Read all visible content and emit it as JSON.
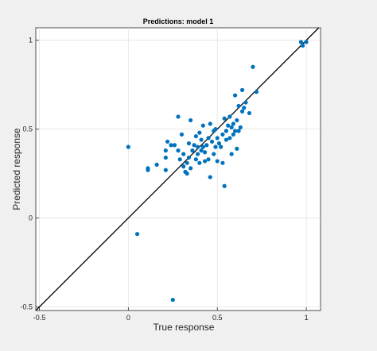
{
  "chart_data": {
    "type": "scatter",
    "title": "Predictions: model 1",
    "xlabel": "True response",
    "ylabel": "Predicted response",
    "xlim": [
      -0.52,
      1.08
    ],
    "ylim": [
      -0.52,
      1.07
    ],
    "grid": true,
    "x_ticks": [
      -0.5,
      0,
      0.5,
      1
    ],
    "y_ticks": [
      -0.5,
      0,
      0.5,
      1
    ],
    "x_tick_labels": [
      "-0.5",
      "0",
      "0.5",
      "1"
    ],
    "y_tick_labels": [
      "-0.5",
      "0",
      "0.5",
      "1"
    ],
    "reference_line": {
      "from": [
        -0.52,
        -0.52
      ],
      "to": [
        1.07,
        1.07
      ]
    },
    "series": [
      {
        "marker_color": "#0072BD",
        "line_color": "#000000",
        "points": [
          [
            0.0,
            0.4
          ],
          [
            0.05,
            -0.09
          ],
          [
            0.25,
            -0.46
          ],
          [
            0.11,
            0.27
          ],
          [
            0.11,
            0.28
          ],
          [
            0.16,
            0.3
          ],
          [
            0.21,
            0.34
          ],
          [
            0.22,
            0.43
          ],
          [
            0.21,
            0.38
          ],
          [
            0.21,
            0.27
          ],
          [
            0.24,
            0.41
          ],
          [
            0.26,
            0.41
          ],
          [
            0.28,
            0.38
          ],
          [
            0.28,
            0.57
          ],
          [
            0.29,
            0.33
          ],
          [
            0.3,
            0.47
          ],
          [
            0.31,
            0.36
          ],
          [
            0.31,
            0.29
          ],
          [
            0.32,
            0.26
          ],
          [
            0.33,
            0.25
          ],
          [
            0.33,
            0.31
          ],
          [
            0.34,
            0.34
          ],
          [
            0.34,
            0.42
          ],
          [
            0.35,
            0.28
          ],
          [
            0.35,
            0.55
          ],
          [
            0.36,
            0.38
          ],
          [
            0.37,
            0.41
          ],
          [
            0.38,
            0.46
          ],
          [
            0.38,
            0.33
          ],
          [
            0.39,
            0.4
          ],
          [
            0.39,
            0.36
          ],
          [
            0.4,
            0.48
          ],
          [
            0.4,
            0.31
          ],
          [
            0.41,
            0.44
          ],
          [
            0.41,
            0.38
          ],
          [
            0.42,
            0.4
          ],
          [
            0.42,
            0.52
          ],
          [
            0.43,
            0.37
          ],
          [
            0.43,
            0.32
          ],
          [
            0.44,
            0.41
          ],
          [
            0.45,
            0.45
          ],
          [
            0.45,
            0.33
          ],
          [
            0.46,
            0.53
          ],
          [
            0.46,
            0.23
          ],
          [
            0.47,
            0.43
          ],
          [
            0.48,
            0.49
          ],
          [
            0.48,
            0.36
          ],
          [
            0.49,
            0.5
          ],
          [
            0.49,
            0.4
          ],
          [
            0.5,
            0.32
          ],
          [
            0.5,
            0.45
          ],
          [
            0.51,
            0.42
          ],
          [
            0.52,
            0.4
          ],
          [
            0.53,
            0.47
          ],
          [
            0.53,
            0.31
          ],
          [
            0.54,
            0.56
          ],
          [
            0.54,
            0.18
          ],
          [
            0.55,
            0.49
          ],
          [
            0.55,
            0.44
          ],
          [
            0.56,
            0.52
          ],
          [
            0.57,
            0.45
          ],
          [
            0.57,
            0.57
          ],
          [
            0.58,
            0.51
          ],
          [
            0.58,
            0.36
          ],
          [
            0.59,
            0.53
          ],
          [
            0.59,
            0.47
          ],
          [
            0.6,
            0.69
          ],
          [
            0.6,
            0.49
          ],
          [
            0.61,
            0.55
          ],
          [
            0.61,
            0.39
          ],
          [
            0.62,
            0.63
          ],
          [
            0.62,
            0.49
          ],
          [
            0.63,
            0.51
          ],
          [
            0.64,
            0.72
          ],
          [
            0.64,
            0.6
          ],
          [
            0.65,
            0.62
          ],
          [
            0.66,
            0.65
          ],
          [
            0.68,
            0.59
          ],
          [
            0.7,
            0.85
          ],
          [
            0.72,
            0.71
          ],
          [
            0.97,
            0.99
          ],
          [
            0.98,
            0.97
          ],
          [
            1.0,
            0.99
          ]
        ]
      }
    ]
  }
}
